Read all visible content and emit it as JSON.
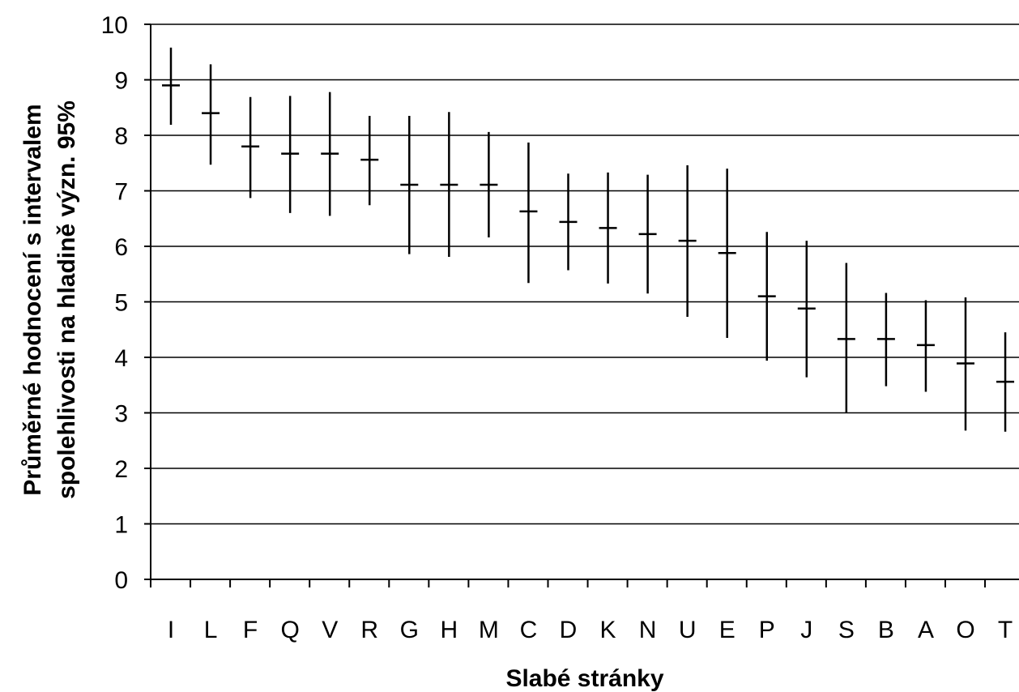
{
  "chart_data": {
    "type": "errorbar",
    "title": "",
    "xlabel": "Slabé stránky",
    "ylabel_line1": "Průměrné hodnocení  s intervalem",
    "ylabel_line2": "spolehlivosti na hladině  význ. 95%",
    "ylim": [
      0,
      10
    ],
    "yticks": [
      "0",
      "1",
      "2",
      "3",
      "4",
      "5",
      "6",
      "7",
      "8",
      "9",
      "10"
    ],
    "grid": true,
    "categories": [
      "I",
      "L",
      "F",
      "Q",
      "V",
      "R",
      "G",
      "H",
      "M",
      "C",
      "D",
      "K",
      "N",
      "U",
      "E",
      "P",
      "J",
      "S",
      "B",
      "A",
      "O",
      "T"
    ],
    "means": [
      8.9,
      8.4,
      7.8,
      7.67,
      7.67,
      7.56,
      7.11,
      7.11,
      7.11,
      6.63,
      6.44,
      6.33,
      6.22,
      6.1,
      5.88,
      5.1,
      4.88,
      4.33,
      4.33,
      4.22,
      3.89,
      3.56
    ],
    "upper": [
      9.58,
      9.28,
      8.69,
      8.71,
      8.78,
      8.35,
      8.35,
      8.42,
      8.06,
      7.87,
      7.31,
      7.33,
      7.29,
      7.46,
      7.4,
      6.26,
      6.1,
      5.7,
      5.16,
      5.03,
      5.08,
      4.45
    ],
    "lower": [
      8.19,
      7.47,
      6.87,
      6.6,
      6.55,
      6.74,
      5.86,
      5.81,
      6.16,
      5.34,
      5.57,
      5.33,
      5.15,
      4.73,
      4.35,
      3.94,
      3.64,
      3.0,
      3.48,
      3.38,
      2.68,
      2.66
    ]
  }
}
